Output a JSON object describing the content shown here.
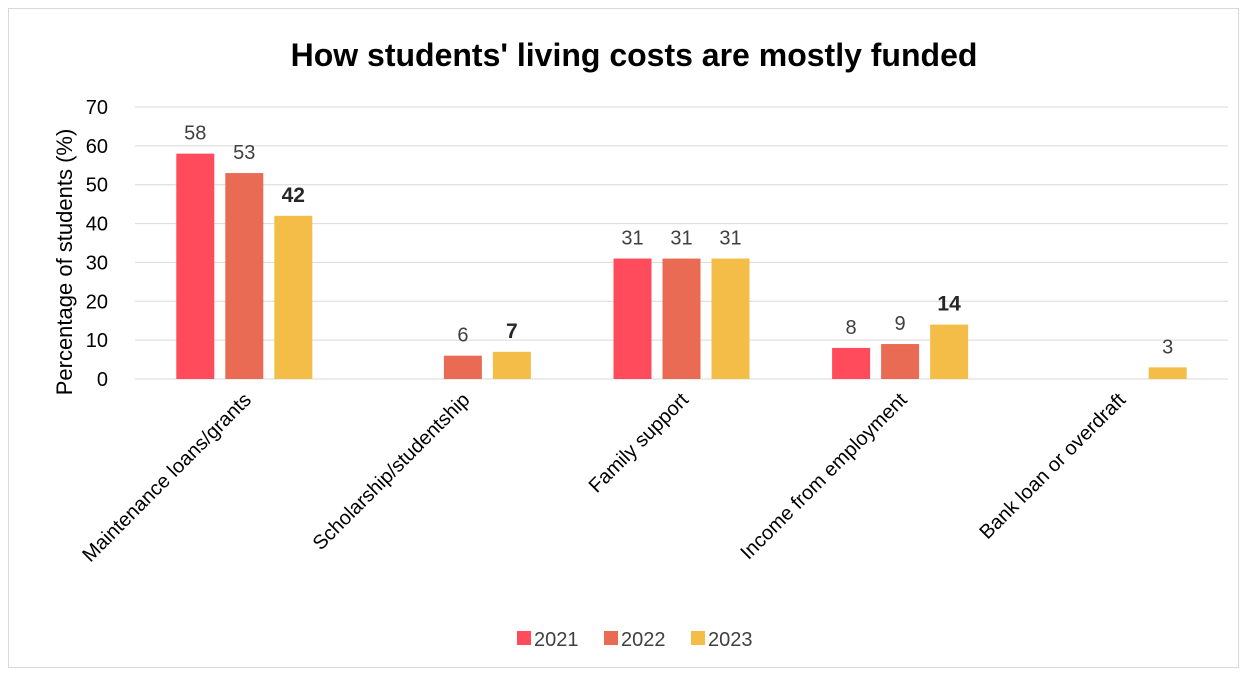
{
  "chart_data": {
    "type": "bar",
    "title": "How students' living costs are mostly funded",
    "ylabel": "Percentage of students (%)",
    "xlabel": "",
    "ylim": [
      0,
      70
    ],
    "yticks": [
      0,
      10,
      20,
      30,
      40,
      50,
      60,
      70
    ],
    "grid": true,
    "legend": "bottom",
    "categories": [
      "Maintenance loans/grants",
      "Scholarship/studentship",
      "Family support",
      "Income from employment",
      "Bank loan or overdraft"
    ],
    "series": [
      {
        "name": "2021",
        "color": "#ff4b5c",
        "values": [
          58,
          null,
          31,
          8,
          null
        ]
      },
      {
        "name": "2022",
        "color": "#ea6b53",
        "values": [
          53,
          6,
          31,
          9,
          null
        ]
      },
      {
        "name": "2023",
        "color": "#f4bd48",
        "values": [
          42,
          7,
          31,
          14,
          3
        ]
      }
    ],
    "bold_labels": [
      [
        2,
        0
      ],
      [
        2,
        1
      ],
      [
        2,
        3
      ]
    ]
  }
}
